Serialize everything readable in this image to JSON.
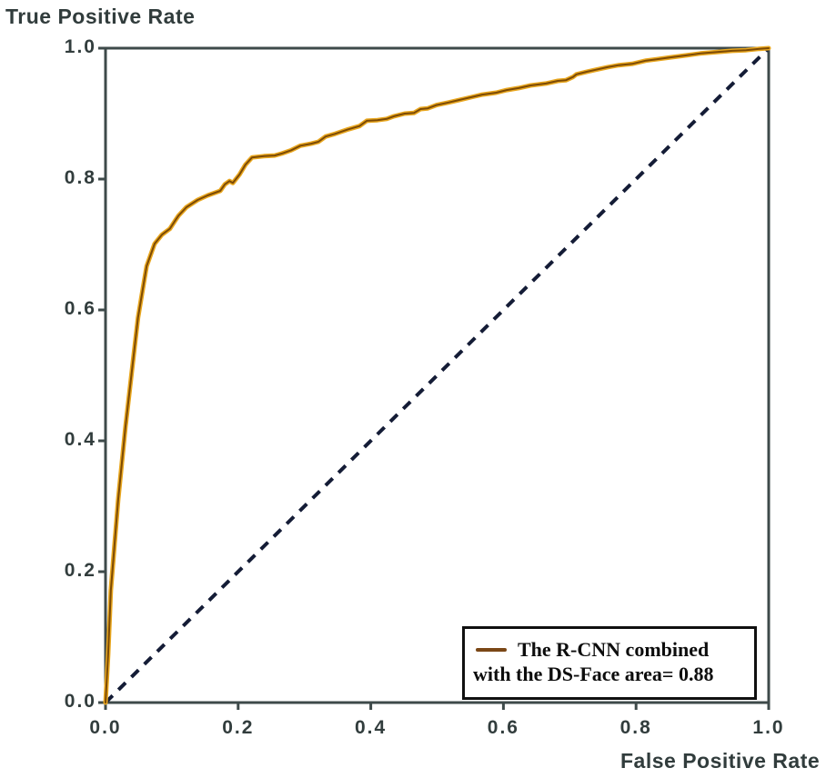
{
  "figure": {
    "kind": "ROC curve figure",
    "background": "#ffffff"
  },
  "chart_data": {
    "type": "line",
    "title": "",
    "xlabel": "False Positive Rate",
    "ylabel": "True Positive Rate",
    "xlim": [
      0,
      1
    ],
    "ylim": [
      0,
      1
    ],
    "grid": false,
    "xticks": [
      "0.0",
      "0.2",
      "0.4",
      "0.6",
      "0.8",
      "1.0"
    ],
    "yticks": [
      "0.0",
      "0.2",
      "0.4",
      "0.6",
      "0.8",
      "1.0"
    ],
    "legend": {
      "position": "lower right",
      "lines": [
        "The R-CNN combined",
        "with the DS-Face area= 0.88"
      ],
      "swatch_color": "#7a4716"
    },
    "series": [
      {
        "name": "The R-CNN combined with the DS-Face, area = 0.88",
        "style": "solid",
        "color_core": "#7c4a05",
        "color_halo": "#e9a71f",
        "auc": 0.88,
        "points": [
          [
            0.0,
            0.0
          ],
          [
            0.004,
            0.074
          ],
          [
            0.008,
            0.171
          ],
          [
            0.019,
            0.31
          ],
          [
            0.03,
            0.421
          ],
          [
            0.041,
            0.518
          ],
          [
            0.049,
            0.588
          ],
          [
            0.058,
            0.643
          ],
          [
            0.062,
            0.667
          ],
          [
            0.074,
            0.701
          ],
          [
            0.085,
            0.715
          ],
          [
            0.097,
            0.724
          ],
          [
            0.106,
            0.738
          ],
          [
            0.11,
            0.744
          ],
          [
            0.122,
            0.757
          ],
          [
            0.139,
            0.768
          ],
          [
            0.154,
            0.775
          ],
          [
            0.173,
            0.782
          ],
          [
            0.18,
            0.792
          ],
          [
            0.187,
            0.797
          ],
          [
            0.192,
            0.794
          ],
          [
            0.202,
            0.807
          ],
          [
            0.211,
            0.822
          ],
          [
            0.221,
            0.833
          ],
          [
            0.239,
            0.835
          ],
          [
            0.255,
            0.836
          ],
          [
            0.266,
            0.839
          ],
          [
            0.28,
            0.844
          ],
          [
            0.294,
            0.851
          ],
          [
            0.31,
            0.854
          ],
          [
            0.321,
            0.857
          ],
          [
            0.332,
            0.865
          ],
          [
            0.346,
            0.869
          ],
          [
            0.366,
            0.876
          ],
          [
            0.383,
            0.881
          ],
          [
            0.394,
            0.889
          ],
          [
            0.41,
            0.89
          ],
          [
            0.424,
            0.892
          ],
          [
            0.435,
            0.896
          ],
          [
            0.451,
            0.9
          ],
          [
            0.465,
            0.901
          ],
          [
            0.475,
            0.907
          ],
          [
            0.486,
            0.908
          ],
          [
            0.499,
            0.913
          ],
          [
            0.517,
            0.917
          ],
          [
            0.534,
            0.921
          ],
          [
            0.551,
            0.925
          ],
          [
            0.568,
            0.929
          ],
          [
            0.589,
            0.932
          ],
          [
            0.605,
            0.936
          ],
          [
            0.623,
            0.939
          ],
          [
            0.641,
            0.943
          ],
          [
            0.664,
            0.946
          ],
          [
            0.682,
            0.95
          ],
          [
            0.694,
            0.951
          ],
          [
            0.705,
            0.956
          ],
          [
            0.71,
            0.96
          ],
          [
            0.726,
            0.964
          ],
          [
            0.739,
            0.967
          ],
          [
            0.757,
            0.971
          ],
          [
            0.774,
            0.974
          ],
          [
            0.794,
            0.976
          ],
          [
            0.815,
            0.981
          ],
          [
            0.831,
            0.983
          ],
          [
            0.852,
            0.986
          ],
          [
            0.876,
            0.989
          ],
          [
            0.897,
            0.992
          ],
          [
            0.922,
            0.994
          ],
          [
            0.945,
            0.996
          ],
          [
            0.966,
            0.997
          ],
          [
            0.986,
            0.999
          ],
          [
            1.0,
            1.0
          ]
        ]
      },
      {
        "name": "chance diagonal",
        "style": "dashed",
        "color": "#141c36",
        "points": [
          [
            0,
            0
          ],
          [
            1,
            1
          ]
        ]
      }
    ],
    "axis_color": "#3e4a4a",
    "tick_label_color": "#323d3d"
  }
}
